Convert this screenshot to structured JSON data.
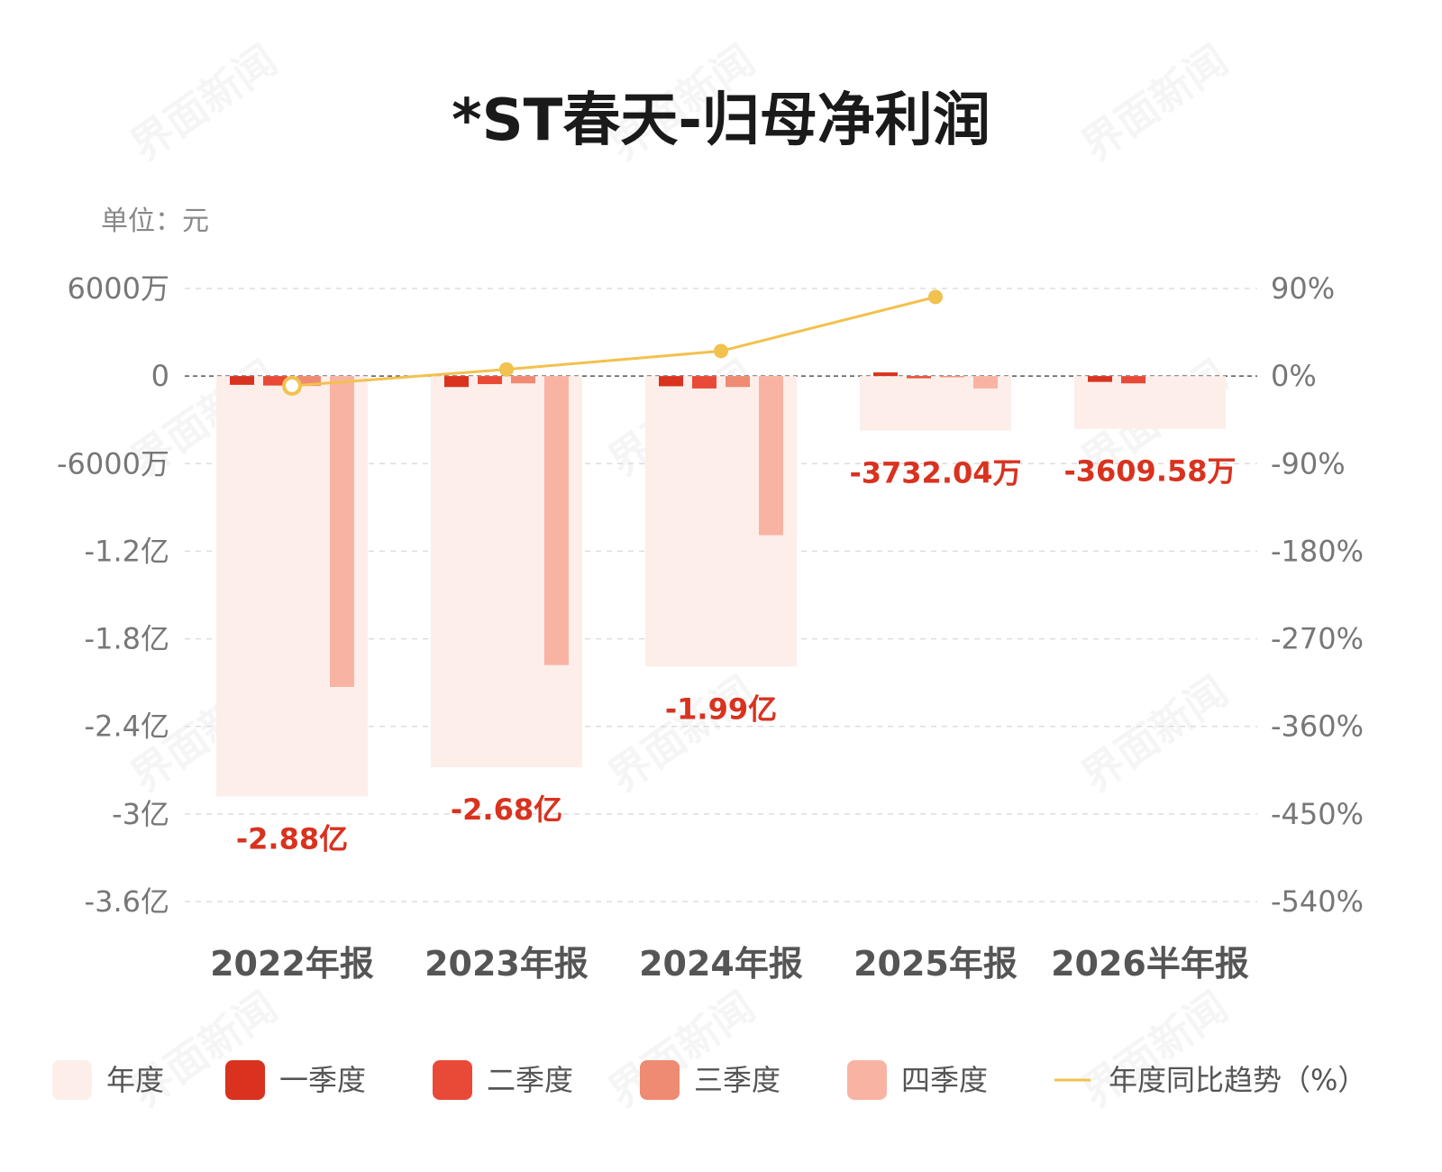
{
  "chart_data": {
    "type": "bar",
    "title": "*ST春天-归母净利润",
    "unit_label": "单位：元",
    "watermark": "界面新闻",
    "categories": [
      "2022年报",
      "2023年报",
      "2024年报",
      "2025年报",
      "2026半年报"
    ],
    "series": [
      {
        "name": "年度",
        "color": "#fdeeea",
        "values": [
          -288000000,
          -268000000,
          -199000000,
          -37320400,
          -36095800
        ]
      },
      {
        "name": "一季度",
        "color": "#d9321f",
        "values": [
          -6000000,
          -7500000,
          -7000000,
          2500000,
          -4000000
        ]
      },
      {
        "name": "二季度",
        "color": "#e94a38",
        "values": [
          -6500000,
          -5500000,
          -8500000,
          -1500000,
          -5000000
        ]
      },
      {
        "name": "三季度",
        "color": "#ef8a73",
        "values": [
          -6800000,
          -5000000,
          -7500000,
          -800000,
          null
        ]
      },
      {
        "name": "四季度",
        "color": "#f9b3a3",
        "values": [
          -213000000,
          -198000000,
          -109000000,
          -8500000,
          null
        ]
      }
    ],
    "data_labels": [
      "-2.88亿",
      "-2.68亿",
      "-1.99亿",
      "-3732.04万",
      "-3609.58万"
    ],
    "yoy_series": {
      "name": "年度同比趋势（%）",
      "color": "#f2c14e",
      "values": [
        -10,
        6.9,
        25.7,
        81.3,
        null
      ]
    },
    "y_left_ticks": [
      "6000万",
      "0",
      "-6000万",
      "-1.2亿",
      "-1.8亿",
      "-2.4亿",
      "-3亿",
      "-3.6亿"
    ],
    "y_right_ticks": [
      "90%",
      "0%",
      "-90%",
      "-180%",
      "-270%",
      "-360%",
      "-450%",
      "-540%"
    ],
    "ylim_left": [
      -360000000,
      60000000
    ],
    "ylim_right": [
      -540,
      90
    ],
    "legend": [
      "年度",
      "一季度",
      "二季度",
      "三季度",
      "四季度",
      "年度同比趋势（%）"
    ]
  }
}
